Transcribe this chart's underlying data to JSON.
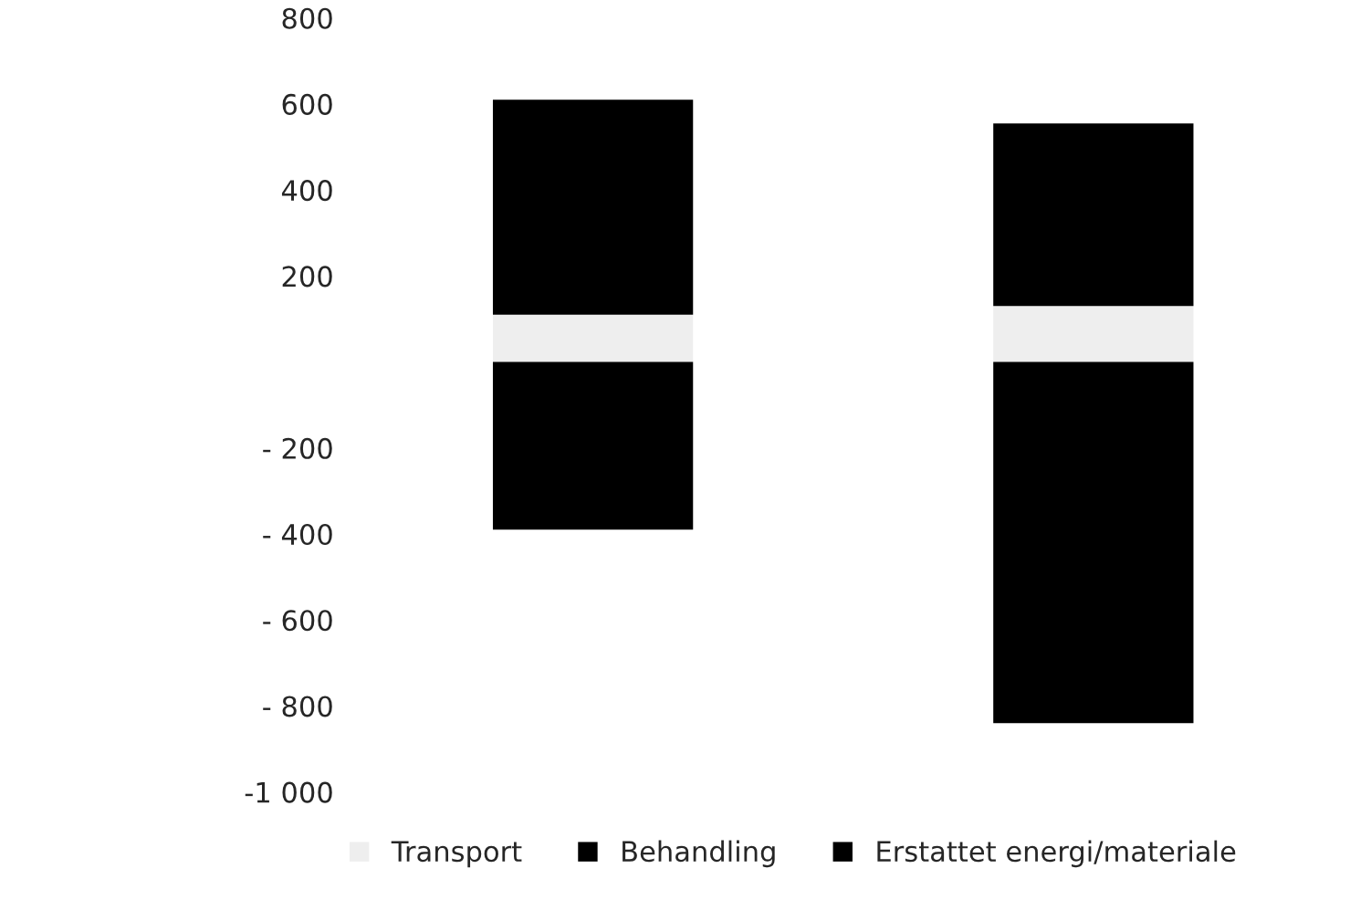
{
  "chart_data": {
    "type": "bar",
    "stacked": true,
    "categories": [
      null,
      null
    ],
    "series": [
      {
        "name": "Transport",
        "color": "#eeeeee",
        "values": [
          110,
          130
        ]
      },
      {
        "name": "Behandling",
        "color": "#000000",
        "values": [
          500,
          425
        ]
      },
      {
        "name": "Erstattet energi/materiale",
        "color": "#000000",
        "values": [
          -390,
          -840
        ]
      }
    ],
    "ylim": [
      -1000,
      800
    ],
    "yticks": [
      800,
      600,
      400,
      200,
      {
        "value": -200,
        "label": "- 200"
      },
      {
        "value": -400,
        "label": "- 400"
      },
      {
        "value": -600,
        "label": "- 600"
      },
      {
        "value": -800,
        "label": "- 800"
      },
      {
        "value": -1000,
        "label": "-1 000"
      }
    ],
    "tick_labels": "y",
    "grid": false,
    "legend": "bottom"
  }
}
